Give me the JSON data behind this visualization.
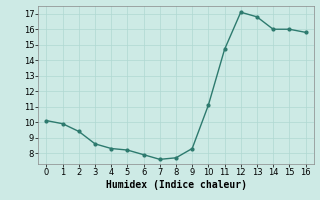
{
  "x": [
    0,
    1,
    2,
    3,
    4,
    5,
    6,
    7,
    8,
    9,
    10,
    11,
    12,
    13,
    14,
    15,
    16
  ],
  "y": [
    10.1,
    9.9,
    9.4,
    8.6,
    8.3,
    8.2,
    7.9,
    7.6,
    7.7,
    8.3,
    11.1,
    14.7,
    17.1,
    16.8,
    16.0,
    16.0,
    15.8
  ],
  "line_color": "#2d7a6e",
  "marker": "o",
  "marker_size": 2.0,
  "line_width": 1.0,
  "xlabel": "Humidex (Indice chaleur)",
  "xlabel_fontsize": 7,
  "xlabel_fontfamily": "monospace",
  "ylim": [
    7.3,
    17.5
  ],
  "xlim": [
    -0.5,
    16.5
  ],
  "yticks": [
    8,
    9,
    10,
    11,
    12,
    13,
    14,
    15,
    16,
    17
  ],
  "xticks": [
    0,
    1,
    2,
    3,
    4,
    5,
    6,
    7,
    8,
    9,
    10,
    11,
    12,
    13,
    14,
    15,
    16
  ],
  "tick_fontsize": 6,
  "background_color": "#cdeae5",
  "grid_color": "#b0d8d2",
  "grid_linewidth": 0.5
}
